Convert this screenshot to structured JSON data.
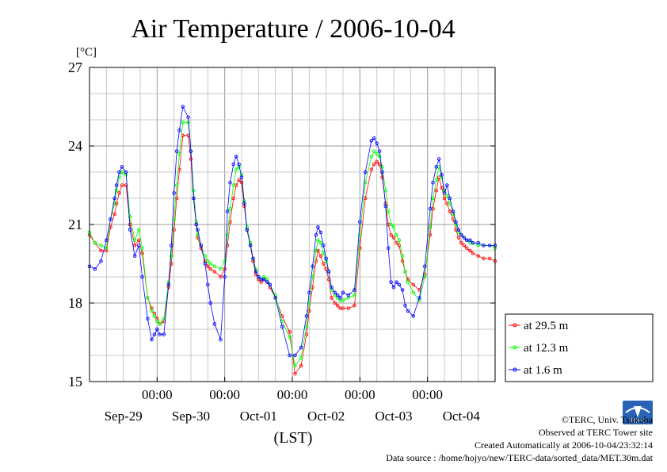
{
  "chart_data": {
    "type": "line",
    "title": "Air Temperature / 2006-10-04",
    "ylabel": "[°C]",
    "xlabel": "(LST)",
    "ylim": [
      15,
      27
    ],
    "yticks": [
      "27",
      "24",
      "21",
      "18",
      "15"
    ],
    "yticks_values": [
      27,
      24,
      21,
      18,
      15
    ],
    "xlim": [
      -1.0,
      5.0
    ],
    "time_ticks": [
      "00:00",
      "00:00",
      "00:00",
      "00:00",
      "00:00"
    ],
    "time_ticks_values": [
      0,
      1,
      2,
      3,
      4
    ],
    "date_ticks": [
      "Sep-29",
      "Sep-30",
      "Oct-01",
      "Oct-02",
      "Oct-03",
      "Oct-04"
    ],
    "date_ticks_values": [
      -0.5,
      0.5,
      1.5,
      2.5,
      3.5,
      4.5
    ],
    "grid": true,
    "legend_position": "right-bottom outside",
    "series": [
      {
        "name": "at 29.5 m",
        "color": "#ff0000",
        "x": [
          -1.0,
          -0.92,
          -0.83,
          -0.75,
          -0.69,
          -0.63,
          -0.6,
          -0.56,
          -0.52,
          -0.46,
          -0.4,
          -0.33,
          -0.27,
          -0.22,
          -0.14,
          -0.08,
          -0.04,
          0.0,
          0.04,
          0.1,
          0.17,
          0.21,
          0.25,
          0.29,
          0.33,
          0.38,
          0.46,
          0.5,
          0.54,
          0.58,
          0.6,
          0.65,
          0.71,
          0.75,
          0.79,
          0.85,
          0.94,
          1.0,
          1.04,
          1.08,
          1.13,
          1.17,
          1.21,
          1.25,
          1.29,
          1.33,
          1.38,
          1.42,
          1.46,
          1.5,
          1.54,
          1.58,
          1.63,
          1.67,
          1.75,
          1.85,
          1.96,
          2.04,
          2.13,
          2.21,
          2.25,
          2.3,
          2.35,
          2.38,
          2.42,
          2.46,
          2.5,
          2.54,
          2.58,
          2.63,
          2.67,
          2.71,
          2.75,
          2.83,
          2.92,
          3.0,
          3.08,
          3.17,
          3.21,
          3.25,
          3.29,
          3.33,
          3.38,
          3.42,
          3.46,
          3.5,
          3.54,
          3.58,
          3.63,
          3.67,
          3.71,
          3.79,
          3.88,
          3.96,
          4.04,
          4.08,
          4.13,
          4.17,
          4.21,
          4.25,
          4.29,
          4.33,
          4.38,
          4.42,
          4.46,
          4.5,
          4.54,
          4.58,
          4.63,
          4.67,
          4.75,
          4.83,
          4.92,
          5.0
        ],
        "values": [
          20.6,
          20.3,
          20.0,
          20.0,
          20.9,
          21.4,
          21.8,
          22.2,
          22.5,
          22.5,
          21.0,
          20.2,
          20.4,
          19.9,
          18.2,
          17.8,
          17.6,
          17.4,
          17.2,
          17.3,
          18.6,
          19.5,
          20.8,
          22.0,
          23.1,
          24.4,
          24.4,
          23.5,
          22.0,
          21.0,
          20.5,
          20.1,
          19.6,
          19.4,
          19.3,
          19.2,
          19.0,
          19.3,
          20.2,
          21.1,
          22.0,
          22.5,
          22.7,
          22.6,
          21.7,
          20.8,
          20.2,
          19.6,
          19.1,
          18.9,
          18.8,
          18.9,
          18.8,
          18.6,
          18.2,
          17.5,
          16.9,
          15.3,
          15.6,
          16.8,
          17.7,
          18.6,
          19.6,
          20.0,
          19.8,
          19.5,
          19.3,
          18.9,
          18.2,
          18.0,
          17.9,
          17.8,
          17.8,
          17.8,
          17.9,
          20.1,
          22.0,
          23.1,
          23.3,
          23.4,
          23.3,
          22.8,
          21.8,
          21.0,
          20.6,
          20.5,
          20.3,
          20.2,
          19.6,
          19.2,
          18.9,
          18.7,
          18.5,
          19.1,
          20.6,
          21.6,
          22.3,
          22.8,
          22.4,
          22.0,
          21.8,
          21.5,
          21.2,
          20.8,
          20.5,
          20.3,
          20.2,
          20.1,
          20.0,
          19.9,
          19.8,
          19.7,
          19.7,
          19.6
        ]
      },
      {
        "name": "at 12.3 m",
        "color": "#00ff00",
        "x": [
          -1.0,
          -0.92,
          -0.83,
          -0.75,
          -0.69,
          -0.63,
          -0.6,
          -0.56,
          -0.52,
          -0.46,
          -0.4,
          -0.33,
          -0.27,
          -0.22,
          -0.14,
          -0.08,
          -0.04,
          0.0,
          0.04,
          0.1,
          0.17,
          0.21,
          0.25,
          0.29,
          0.33,
          0.38,
          0.46,
          0.5,
          0.54,
          0.58,
          0.6,
          0.65,
          0.71,
          0.75,
          0.79,
          0.85,
          0.94,
          1.0,
          1.04,
          1.08,
          1.13,
          1.17,
          1.21,
          1.25,
          1.29,
          1.33,
          1.38,
          1.42,
          1.46,
          1.5,
          1.54,
          1.58,
          1.63,
          1.67,
          1.75,
          1.85,
          1.96,
          2.04,
          2.13,
          2.21,
          2.25,
          2.3,
          2.35,
          2.38,
          2.42,
          2.46,
          2.5,
          2.54,
          2.58,
          2.63,
          2.67,
          2.71,
          2.75,
          2.83,
          2.92,
          3.0,
          3.08,
          3.17,
          3.21,
          3.25,
          3.29,
          3.33,
          3.38,
          3.42,
          3.46,
          3.5,
          3.54,
          3.58,
          3.63,
          3.67,
          3.71,
          3.79,
          3.88,
          3.96,
          4.04,
          4.08,
          4.13,
          4.17,
          4.21,
          4.25,
          4.29,
          4.33,
          4.38,
          4.42,
          4.46,
          4.5,
          4.54,
          4.58,
          4.63,
          4.67,
          4.75,
          4.83,
          4.92,
          5.0
        ],
        "values": [
          20.7,
          20.3,
          20.2,
          20.1,
          21.2,
          21.8,
          22.3,
          22.8,
          23.0,
          22.9,
          21.3,
          20.4,
          20.8,
          20.1,
          18.2,
          17.7,
          17.5,
          17.3,
          17.2,
          17.4,
          18.8,
          19.8,
          21.2,
          22.5,
          23.7,
          24.9,
          24.9,
          23.8,
          22.3,
          21.1,
          20.6,
          20.2,
          19.8,
          19.6,
          19.5,
          19.4,
          19.3,
          19.6,
          20.6,
          21.6,
          22.5,
          23.1,
          23.2,
          22.9,
          21.9,
          20.9,
          20.3,
          19.7,
          19.3,
          19.0,
          18.9,
          19.0,
          18.9,
          18.7,
          18.3,
          17.3,
          16.7,
          15.6,
          15.9,
          17.1,
          18.0,
          19.0,
          20.0,
          20.4,
          20.3,
          19.9,
          19.6,
          19.2,
          18.5,
          18.3,
          18.2,
          18.1,
          18.1,
          18.2,
          18.3,
          20.6,
          22.6,
          23.6,
          23.8,
          23.7,
          23.6,
          23.2,
          22.3,
          21.5,
          21.0,
          20.9,
          20.6,
          20.4,
          19.8,
          19.2,
          18.8,
          18.4,
          18.1,
          19.0,
          20.9,
          22.0,
          22.7,
          23.2,
          22.8,
          22.3,
          22.1,
          21.8,
          21.4,
          21.0,
          20.7,
          20.6,
          20.5,
          20.4,
          20.3,
          20.3,
          20.2,
          20.2,
          20.2,
          20.1
        ]
      },
      {
        "name": "at 1.6 m",
        "color": "#0000ff",
        "x": [
          -1.0,
          -0.92,
          -0.83,
          -0.75,
          -0.69,
          -0.63,
          -0.6,
          -0.56,
          -0.52,
          -0.46,
          -0.4,
          -0.33,
          -0.27,
          -0.22,
          -0.14,
          -0.08,
          -0.04,
          0.0,
          0.04,
          0.1,
          0.17,
          0.21,
          0.25,
          0.29,
          0.33,
          0.38,
          0.46,
          0.5,
          0.54,
          0.58,
          0.6,
          0.65,
          0.71,
          0.75,
          0.79,
          0.85,
          0.94,
          1.0,
          1.04,
          1.08,
          1.13,
          1.17,
          1.21,
          1.25,
          1.29,
          1.33,
          1.38,
          1.42,
          1.46,
          1.5,
          1.54,
          1.58,
          1.63,
          1.67,
          1.75,
          1.85,
          1.96,
          2.04,
          2.13,
          2.21,
          2.25,
          2.3,
          2.35,
          2.38,
          2.42,
          2.46,
          2.5,
          2.54,
          2.58,
          2.63,
          2.67,
          2.71,
          2.75,
          2.83,
          2.92,
          3.0,
          3.08,
          3.17,
          3.21,
          3.25,
          3.29,
          3.33,
          3.38,
          3.42,
          3.46,
          3.5,
          3.54,
          3.58,
          3.63,
          3.67,
          3.71,
          3.79,
          3.88,
          3.96,
          4.04,
          4.08,
          4.13,
          4.17,
          4.21,
          4.25,
          4.29,
          4.33,
          4.38,
          4.42,
          4.46,
          4.5,
          4.54,
          4.58,
          4.63,
          4.67,
          4.75,
          4.83,
          4.92,
          5.0
        ],
        "values": [
          19.4,
          19.3,
          19.6,
          20.4,
          21.2,
          22.0,
          22.5,
          23.0,
          23.2,
          23.0,
          20.8,
          19.8,
          20.2,
          19.0,
          17.4,
          16.6,
          16.8,
          17.0,
          16.8,
          16.8,
          18.7,
          20.2,
          22.2,
          23.8,
          24.6,
          25.5,
          25.1,
          23.8,
          22.0,
          21.0,
          20.8,
          20.2,
          19.5,
          18.7,
          18.0,
          17.2,
          16.6,
          19.0,
          21.5,
          22.6,
          23.3,
          23.6,
          23.3,
          22.8,
          21.8,
          20.8,
          20.2,
          19.7,
          19.2,
          19.0,
          18.9,
          18.9,
          18.8,
          18.7,
          18.2,
          17.1,
          16.0,
          16.0,
          16.3,
          17.5,
          18.4,
          19.4,
          20.6,
          20.9,
          20.7,
          20.2,
          19.7,
          19.2,
          18.6,
          18.4,
          18.3,
          18.2,
          18.4,
          18.3,
          18.5,
          21.1,
          23.0,
          24.2,
          24.3,
          24.1,
          23.8,
          23.0,
          21.7,
          20.1,
          18.8,
          18.6,
          18.8,
          18.7,
          18.5,
          17.9,
          17.7,
          17.5,
          18.2,
          19.4,
          21.6,
          22.6,
          23.2,
          23.5,
          22.9,
          22.2,
          22.5,
          22.0,
          21.5,
          21.1,
          20.8,
          20.6,
          20.5,
          20.4,
          20.4,
          20.3,
          20.3,
          20.2,
          20.2,
          20.2
        ]
      }
    ]
  },
  "footer": {
    "copyright": "©TERC, Univ. Tsukuba",
    "observed": "Observed at TERC Tower site",
    "created": "Created Automatically at 2006-10-04/23:32:14",
    "source": "Data source : /home/hojyo/new/TERC-data/sorted_data/MET.30m.dat"
  },
  "logo": {
    "text": "TERC"
  }
}
